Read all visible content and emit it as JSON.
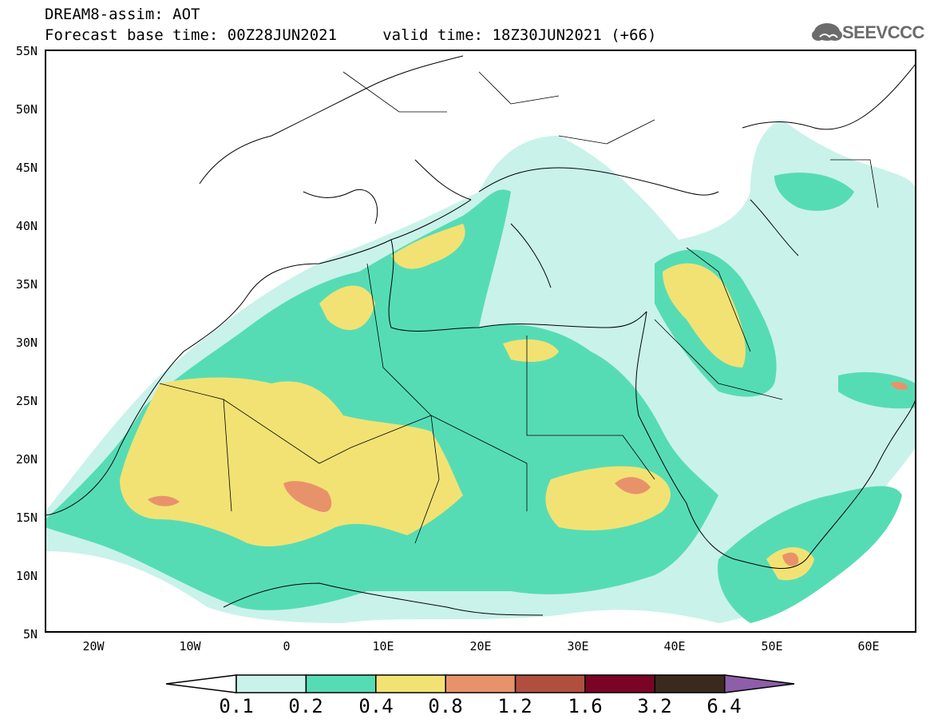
{
  "header": {
    "line1": "DREAM8-assim: AOT",
    "line2": "Forecast base time: 00Z28JUN2021     valid time: 18Z30JUN2021 (+66)"
  },
  "logo": {
    "text": "SEEVCCC",
    "icon": "cloud-icon"
  },
  "map": {
    "lat_labels": [
      "55N",
      "50N",
      "45N",
      "40N",
      "35N",
      "30N",
      "25N",
      "20N",
      "15N",
      "10N",
      "5N"
    ],
    "lon_labels": [
      "20W",
      "10W",
      "0",
      "10E",
      "20E",
      "30E",
      "40E",
      "50E",
      "60E"
    ]
  },
  "colorbar": {
    "labels": [
      "0.1",
      "0.2",
      "0.4",
      "0.8",
      "1.2",
      "1.6",
      "3.2",
      "6.4"
    ],
    "colors": [
      "#ffffff",
      "#c9f2ea",
      "#56dcb4",
      "#f2e274",
      "#e8926b",
      "#b14f3f",
      "#7a0426",
      "#3a2a1c",
      "#8e5ea8"
    ]
  },
  "palette": {
    "land": "#ffffff",
    "level1": "#c9f2ea",
    "level2": "#56dcb4",
    "level3": "#f2e274",
    "level4": "#e8926b"
  }
}
